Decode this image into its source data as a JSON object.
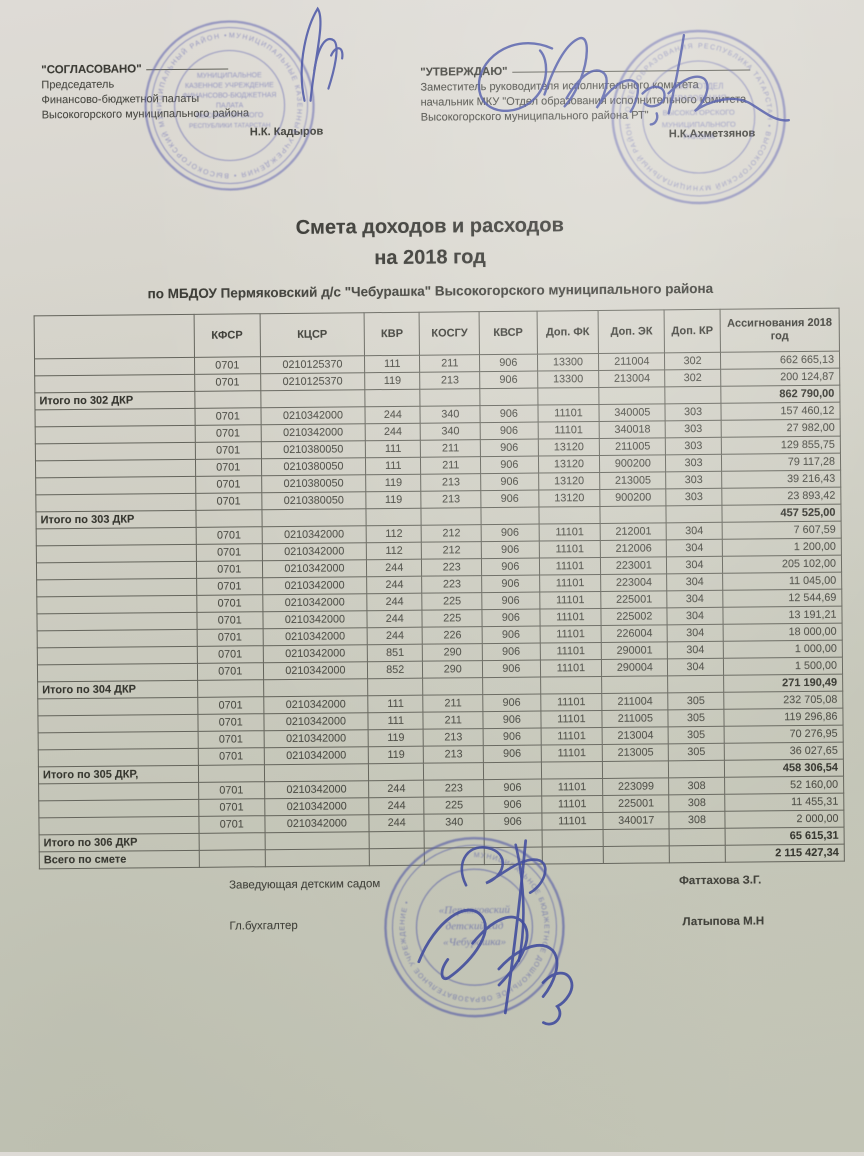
{
  "approvals": {
    "left": {
      "title": "\"СОГЛАСОВАНО\"",
      "lines": [
        "Председатель",
        "Финансово-бюджетной палаты",
        "Высокогорского муниципального района"
      ],
      "signer": "Н.К. Кадыров"
    },
    "right": {
      "title": "\"УТВЕРЖДАЮ\"",
      "lines": [
        "Заместитель руководителя исполнительного комитета",
        "начальник МКУ \"Отдел образования исполнительного комитета",
        "Высокогорского муниципального района РТ\""
      ],
      "signer": "Н.К.Ахметзянов"
    }
  },
  "title": {
    "line1": "Смета доходов и расходов",
    "line2": "на 2018 год",
    "subtitle": "по МБДОУ Пермяковский д/с \"Чебурашка\" Высокогорского муниципального района"
  },
  "table": {
    "headers": [
      "",
      "КФСР",
      "КЦСР",
      "КВР",
      "КОСГУ",
      "КВСР",
      "Доп. ФК",
      "Доп. ЭК",
      "Доп. КР",
      "Ассигнования 2018 год"
    ],
    "rows": [
      {
        "total": false,
        "cells": [
          "",
          "0701",
          "0210125370",
          "111",
          "211",
          "906",
          "13300",
          "211004",
          "302",
          "662 665,13"
        ]
      },
      {
        "total": false,
        "cells": [
          "",
          "0701",
          "0210125370",
          "119",
          "213",
          "906",
          "13300",
          "213004",
          "302",
          "200 124,87"
        ]
      },
      {
        "total": true,
        "cells": [
          "Итого по 302 ДКР",
          "",
          "",
          "",
          "",
          "",
          "",
          "",
          "",
          "862 790,00"
        ]
      },
      {
        "total": false,
        "cells": [
          "",
          "0701",
          "0210342000",
          "244",
          "340",
          "906",
          "11101",
          "340005",
          "303",
          "157 460,12"
        ]
      },
      {
        "total": false,
        "cells": [
          "",
          "0701",
          "0210342000",
          "244",
          "340",
          "906",
          "11101",
          "340018",
          "303",
          "27 982,00"
        ]
      },
      {
        "total": false,
        "cells": [
          "",
          "0701",
          "0210380050",
          "111",
          "211",
          "906",
          "13120",
          "211005",
          "303",
          "129 855,75"
        ]
      },
      {
        "total": false,
        "cells": [
          "",
          "0701",
          "0210380050",
          "111",
          "211",
          "906",
          "13120",
          "900200",
          "303",
          "79 117,28"
        ]
      },
      {
        "total": false,
        "cells": [
          "",
          "0701",
          "0210380050",
          "119",
          "213",
          "906",
          "13120",
          "213005",
          "303",
          "39 216,43"
        ]
      },
      {
        "total": false,
        "cells": [
          "",
          "0701",
          "0210380050",
          "119",
          "213",
          "906",
          "13120",
          "900200",
          "303",
          "23 893,42"
        ]
      },
      {
        "total": true,
        "cells": [
          "Итого по 303 ДКР",
          "",
          "",
          "",
          "",
          "",
          "",
          "",
          "",
          "457 525,00"
        ]
      },
      {
        "total": false,
        "cells": [
          "",
          "0701",
          "0210342000",
          "112",
          "212",
          "906",
          "11101",
          "212001",
          "304",
          "7 607,59"
        ]
      },
      {
        "total": false,
        "cells": [
          "",
          "0701",
          "0210342000",
          "112",
          "212",
          "906",
          "11101",
          "212006",
          "304",
          "1 200,00"
        ]
      },
      {
        "total": false,
        "cells": [
          "",
          "0701",
          "0210342000",
          "244",
          "223",
          "906",
          "11101",
          "223001",
          "304",
          "205 102,00"
        ]
      },
      {
        "total": false,
        "cells": [
          "",
          "0701",
          "0210342000",
          "244",
          "223",
          "906",
          "11101",
          "223004",
          "304",
          "11 045,00"
        ]
      },
      {
        "total": false,
        "cells": [
          "",
          "0701",
          "0210342000",
          "244",
          "225",
          "906",
          "11101",
          "225001",
          "304",
          "12 544,69"
        ]
      },
      {
        "total": false,
        "cells": [
          "",
          "0701",
          "0210342000",
          "244",
          "225",
          "906",
          "11101",
          "225002",
          "304",
          "13 191,21"
        ]
      },
      {
        "total": false,
        "cells": [
          "",
          "0701",
          "0210342000",
          "244",
          "226",
          "906",
          "11101",
          "226004",
          "304",
          "18 000,00"
        ]
      },
      {
        "total": false,
        "cells": [
          "",
          "0701",
          "0210342000",
          "851",
          "290",
          "906",
          "11101",
          "290001",
          "304",
          "1 000,00"
        ]
      },
      {
        "total": false,
        "cells": [
          "",
          "0701",
          "0210342000",
          "852",
          "290",
          "906",
          "11101",
          "290004",
          "304",
          "1 500,00"
        ]
      },
      {
        "total": true,
        "cells": [
          "Итого по 304 ДКР",
          "",
          "",
          "",
          "",
          "",
          "",
          "",
          "",
          "271 190,49"
        ]
      },
      {
        "total": false,
        "cells": [
          "",
          "0701",
          "0210342000",
          "111",
          "211",
          "906",
          "11101",
          "211004",
          "305",
          "232 705,08"
        ]
      },
      {
        "total": false,
        "cells": [
          "",
          "0701",
          "0210342000",
          "111",
          "211",
          "906",
          "11101",
          "211005",
          "305",
          "119 296,86"
        ]
      },
      {
        "total": false,
        "cells": [
          "",
          "0701",
          "0210342000",
          "119",
          "213",
          "906",
          "11101",
          "213004",
          "305",
          "70 276,95"
        ]
      },
      {
        "total": false,
        "cells": [
          "",
          "0701",
          "0210342000",
          "119",
          "213",
          "906",
          "11101",
          "213005",
          "305",
          "36 027,65"
        ]
      },
      {
        "total": true,
        "cells": [
          "Итого по 305 ДКР,",
          "",
          "",
          "",
          "",
          "",
          "",
          "",
          "",
          "458 306,54"
        ]
      },
      {
        "total": false,
        "cells": [
          "",
          "0701",
          "0210342000",
          "244",
          "223",
          "906",
          "11101",
          "223099",
          "308",
          "52 160,00"
        ]
      },
      {
        "total": false,
        "cells": [
          "",
          "0701",
          "0210342000",
          "244",
          "225",
          "906",
          "11101",
          "225001",
          "308",
          "11 455,31"
        ]
      },
      {
        "total": false,
        "cells": [
          "",
          "0701",
          "0210342000",
          "244",
          "340",
          "906",
          "11101",
          "340017",
          "308",
          "2 000,00"
        ]
      },
      {
        "total": true,
        "cells": [
          "Итого по 306 ДКР",
          "",
          "",
          "",
          "",
          "",
          "",
          "",
          "",
          "65 615,31"
        ]
      },
      {
        "total": true,
        "cells": [
          "Всего по смете",
          "",
          "",
          "",
          "",
          "",
          "",
          "",
          "",
          "2 115 427,34"
        ]
      }
    ]
  },
  "footer": {
    "entries": [
      {
        "role": "Заведующая детским садом",
        "name": "Фаттахова З.Г."
      },
      {
        "role": "Гл.бухгалтер",
        "name": "Латыпова М.Н"
      }
    ]
  },
  "stamps": {
    "left": {
      "rim": "МУНИЦИПАЛЬНЫЕ КАЗЕННЫЕ УЧРЕЖДЕНИЯ • ВЫСОКОГОРСКИЙ МУНИЦИПАЛЬНЫЙ РАЙОН •",
      "center": [
        "МУНИЦИПАЛЬНОЕ",
        "КАЗЕННОЕ УЧРЕЖДЕНИЕ",
        "ФИНАНСОВО-БЮДЖЕТНАЯ",
        "ПАЛАТА",
        "ВЫСОКОГОРСКОГО",
        "РЕСПУБЛИКИ ТАТАРСТАН"
      ]
    },
    "right": {
      "rim": "РЕСПУБЛИКА ТАТАРСТАН • ВЫСОКОГОРСКИЙ МУНИЦИПАЛЬНЫЙ РАЙОН • ОТДЕЛ ОБРАЗОВАНИЯ •",
      "center": [
        "МКУ «ОТДЕЛ",
        "ОБРАЗОВАНИЯ»",
        "ВЫСОКОГОРСКОГО",
        "МУНИЦИПАЛЬНОГО",
        "РАЙОНА"
      ]
    },
    "bottom": {
      "rim": "МУНИЦИПАЛЬНОЕ БЮДЖЕТНОЕ ДОШКОЛЬНОЕ ОБРАЗОВАТЕЛЬНОЕ УЧРЕЖДЕНИЕ •",
      "center": [
        "«Пермяковский",
        "детский сад",
        "«Чебурашка»"
      ]
    }
  },
  "colors": {
    "ink": "#3c3c36",
    "stamp_blue": "#6467b0",
    "signature_blue": "#3c48a0",
    "paper_top": "#dedbd6",
    "paper_bottom": "#c2c4b5"
  }
}
